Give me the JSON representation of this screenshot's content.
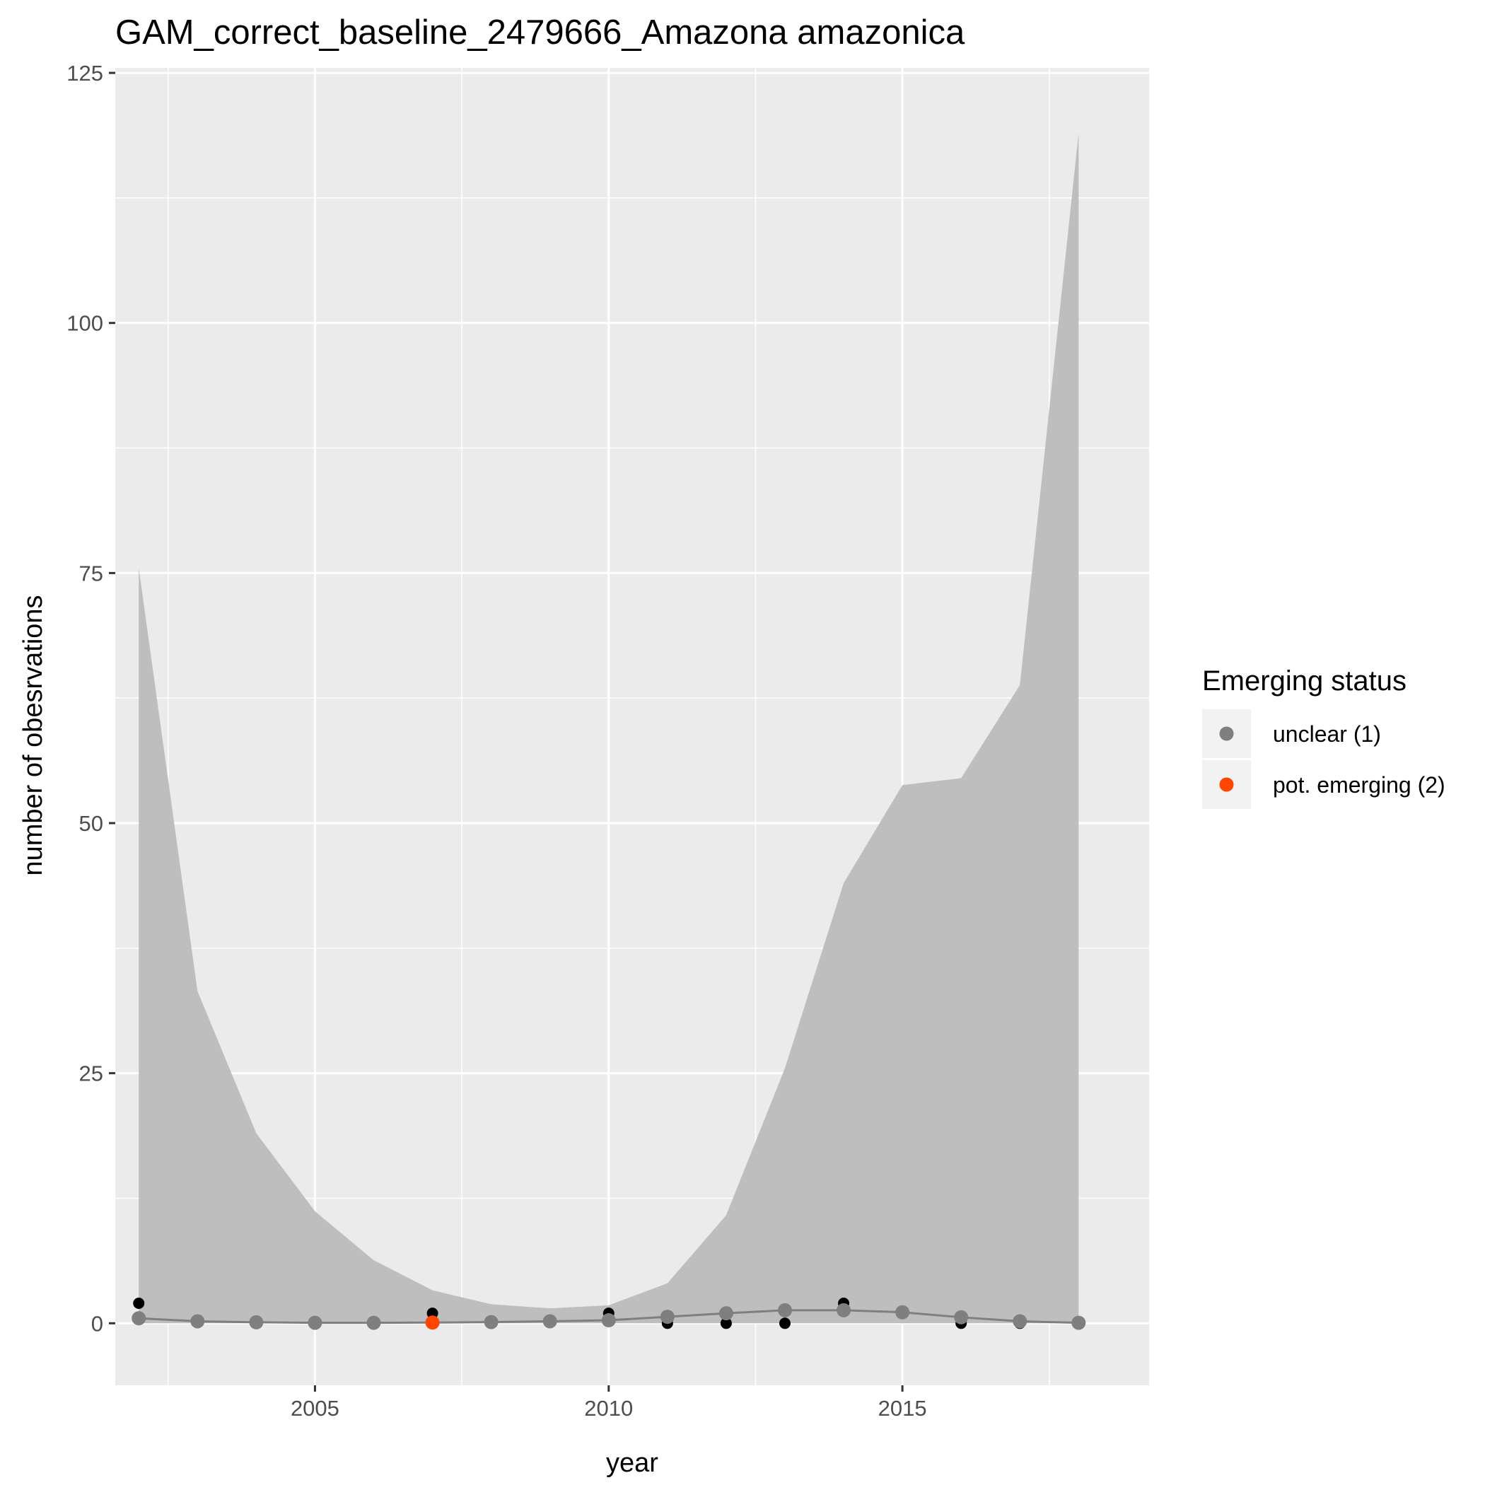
{
  "chart_data": {
    "type": "line",
    "title": "GAM_correct_baseline_2479666_Amazona amazonica",
    "xlabel": "year",
    "ylabel": "number of obesrvations",
    "xlim": [
      2001.6,
      2019.2
    ],
    "ylim": [
      -6.2,
      125.5
    ],
    "x_ticks": [
      2005,
      2010,
      2015
    ],
    "x_tick_labels": [
      "2005",
      "2010",
      "2015"
    ],
    "y_ticks": [
      0,
      25,
      50,
      75,
      100,
      125
    ],
    "y_tick_labels": [
      "0",
      "25",
      "50",
      "75",
      "100",
      "125"
    ],
    "grid": true,
    "legend": {
      "title": "Emerging status",
      "placement": "right",
      "entries": [
        {
          "label": "unclear (1)",
          "color": "#7f7f7f"
        },
        {
          "label": "pot. emerging (2)",
          "color": "#ff4500"
        }
      ]
    },
    "x": [
      2002,
      2003,
      2004,
      2005,
      2006,
      2007,
      2008,
      2009,
      2010,
      2011,
      2012,
      2013,
      2014,
      2015,
      2016,
      2017,
      2018
    ],
    "ribbon": {
      "upper": [
        75.5,
        33.2,
        19.0,
        11.2,
        6.3,
        3.3,
        1.9,
        1.5,
        1.8,
        4.0,
        10.8,
        25.5,
        44.0,
        53.8,
        54.5,
        63.8,
        119.0
      ],
      "lower": [
        0,
        0,
        0,
        0,
        0,
        0,
        0,
        0,
        0,
        0,
        0,
        0,
        0,
        0,
        0,
        0,
        0
      ],
      "color": "#bebebe"
    },
    "series": [
      {
        "values": [
          0.5,
          0.2,
          0.1,
          0.05,
          0.05,
          0.07,
          0.12,
          0.2,
          0.3,
          0.65,
          1.0,
          1.3,
          1.3,
          1.1,
          0.6,
          0.2,
          0.05
        ],
        "status": [
          1,
          1,
          1,
          1,
          1,
          2,
          1,
          1,
          1,
          1,
          1,
          1,
          1,
          1,
          1,
          1,
          1
        ],
        "line_color": "#7f7f7f"
      }
    ],
    "observed": {
      "x": [
        2002,
        2007,
        2010,
        2011,
        2012,
        2013,
        2014,
        2016,
        2017,
        2018
      ],
      "values": [
        2,
        1,
        1,
        0,
        0,
        0,
        2,
        0,
        0,
        0
      ],
      "color": "#000000"
    },
    "colors": {
      "panel_background": "#ebebeb",
      "grid": "#ffffff",
      "unclear": "#7f7f7f",
      "pot_emerging": "#ff4500"
    }
  }
}
